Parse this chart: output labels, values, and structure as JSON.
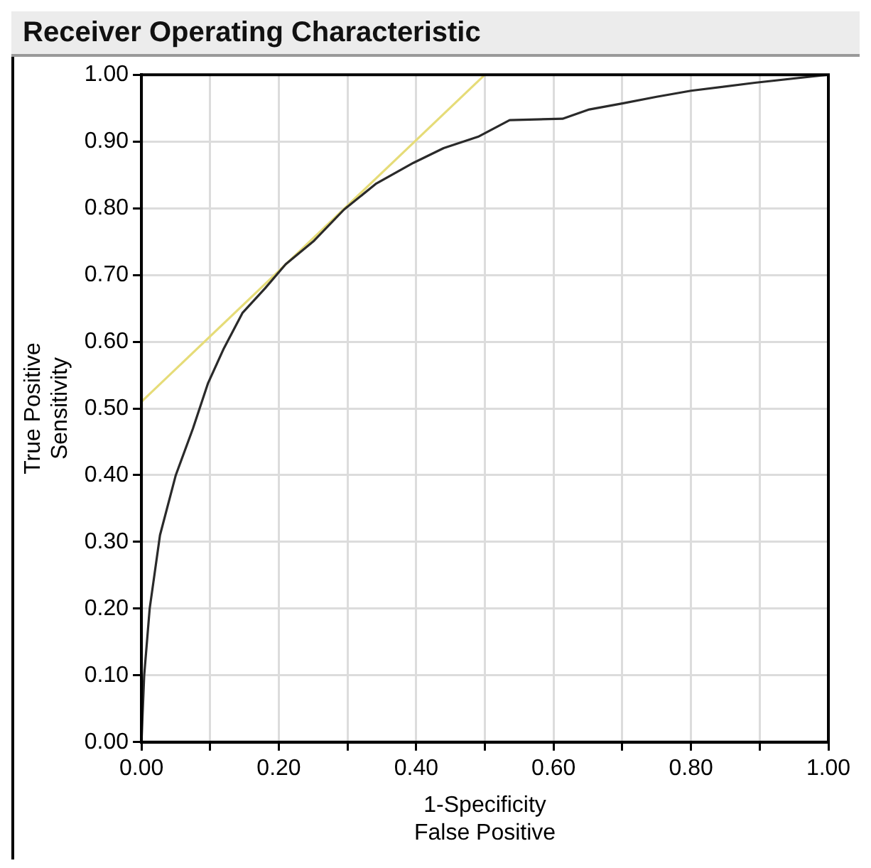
{
  "chart_data": {
    "type": "line",
    "title": "Receiver Operating Characteristic",
    "xlabel": "1-Specificity\nFalse Positive",
    "ylabel": "True Positive\nSensitivity",
    "xlim": [
      0,
      1
    ],
    "ylim": [
      0,
      1
    ],
    "xticks": [
      {
        "value": 0,
        "label": "0.00"
      },
      {
        "value": 0.1,
        "label": null
      },
      {
        "value": 0.2,
        "label": "0.20"
      },
      {
        "value": 0.3,
        "label": null
      },
      {
        "value": 0.4,
        "label": "0.40"
      },
      {
        "value": 0.5,
        "label": null
      },
      {
        "value": 0.6,
        "label": "0.60"
      },
      {
        "value": 0.7,
        "label": null
      },
      {
        "value": 0.8,
        "label": "0.80"
      },
      {
        "value": 0.9,
        "label": null
      },
      {
        "value": 1,
        "label": "1.00"
      }
    ],
    "yticks": [
      {
        "value": 0,
        "label": "0.00"
      },
      {
        "value": 0.1,
        "label": "0.10"
      },
      {
        "value": 0.2,
        "label": "0.20"
      },
      {
        "value": 0.3,
        "label": "0.30"
      },
      {
        "value": 0.4,
        "label": "0.40"
      },
      {
        "value": 0.5,
        "label": "0.50"
      },
      {
        "value": 0.6,
        "label": "0.60"
      },
      {
        "value": 0.7,
        "label": "0.70"
      },
      {
        "value": 0.8,
        "label": "0.80"
      },
      {
        "value": 0.9,
        "label": "0.90"
      },
      {
        "value": 1,
        "label": "1.00"
      }
    ],
    "grid": true,
    "legend": false,
    "marker": "none",
    "line_style": "solid",
    "series": [
      {
        "color": "#2a2a2a",
        "x": [
          0,
          0.004,
          0.012,
          0.027,
          0.05,
          0.075,
          0.097,
          0.12,
          0.147,
          0.18,
          0.21,
          0.25,
          0.295,
          0.342,
          0.396,
          0.44,
          0.49,
          0.536,
          0.613,
          0.652,
          0.7,
          0.75,
          0.8,
          0.893,
          1
        ],
        "values": [
          0,
          0.1,
          0.2,
          0.31,
          0.4,
          0.47,
          0.538,
          0.59,
          0.643,
          0.68,
          0.716,
          0.75,
          0.798,
          0.837,
          0.868,
          0.89,
          0.907,
          0.932,
          0.934,
          0.948,
          0.957,
          0.967,
          0.976,
          0.988,
          1
        ]
      },
      {
        "type": "line",
        "color": "#e6dc78",
        "x": [
          0,
          0.5
        ],
        "values": [
          0.51,
          1
        ]
      }
    ]
  }
}
